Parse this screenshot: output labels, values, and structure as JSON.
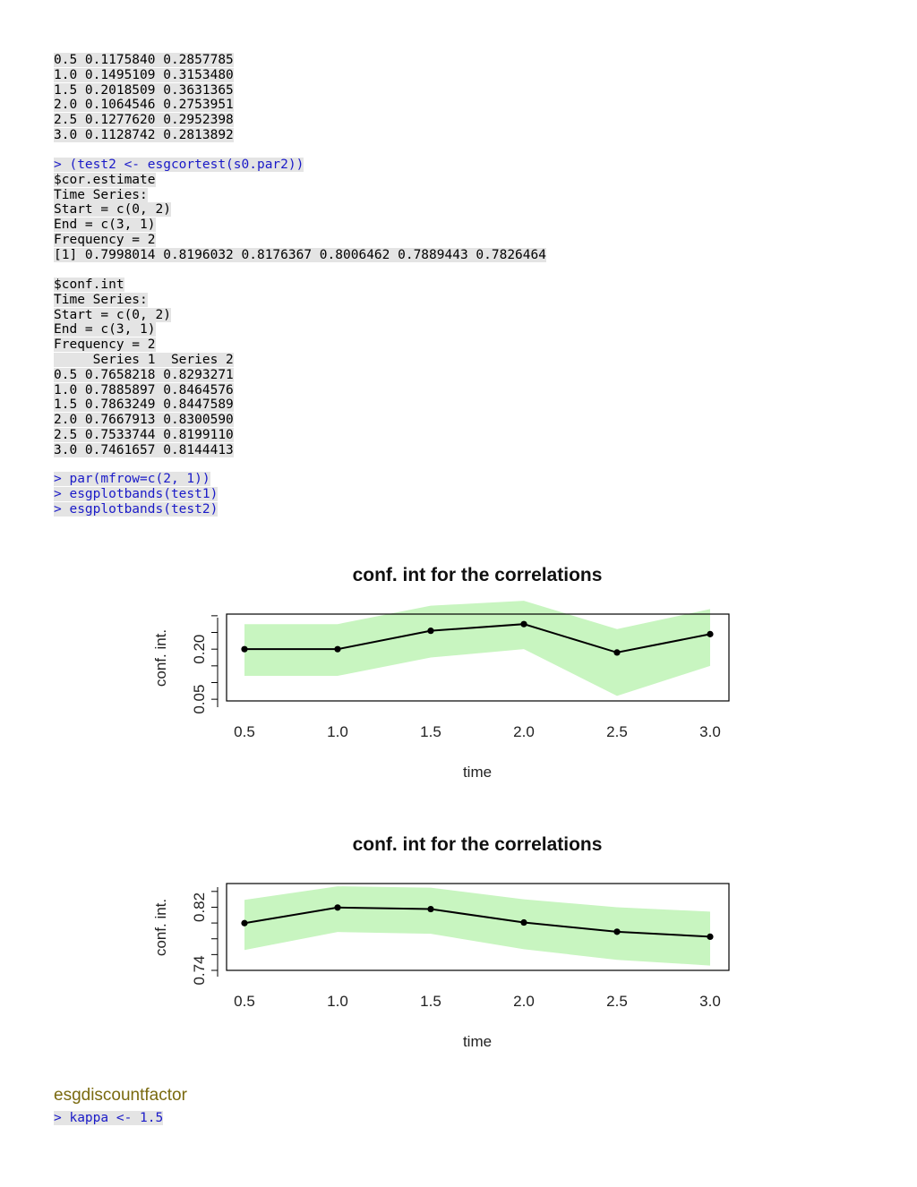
{
  "block1": [
    "0.5 0.1175840 0.2857785",
    "1.0 0.1495109 0.3153480",
    "1.5 0.2018509 0.3631365",
    "2.0 0.1064546 0.2753951",
    "2.5 0.1277620 0.2952398",
    "3.0 0.1128742 0.2813892"
  ],
  "block2": [
    {
      "t": "> (test2 <- esgcortest(s0.par2))",
      "cmd": true
    },
    {
      "t": "$cor.estimate",
      "cmd": false
    },
    {
      "t": "Time Series:",
      "cmd": false
    },
    {
      "t": "Start = c(0, 2)",
      "cmd": false
    },
    {
      "t": "End = c(3, 1)",
      "cmd": false
    },
    {
      "t": "Frequency = 2",
      "cmd": false
    },
    {
      "t": "[1] 0.7998014 0.8196032 0.8176367 0.8006462 0.7889443 0.7826464",
      "cmd": false
    }
  ],
  "block3": [
    "$conf.int",
    "Time Series:",
    "Start = c(0, 2)",
    "End = c(3, 1)",
    "Frequency = 2",
    "     Series 1  Series 2",
    "0.5 0.7658218 0.8293271",
    "1.0 0.7885897 0.8464576",
    "1.5 0.7863249 0.8447589",
    "2.0 0.7667913 0.8300590",
    "2.5 0.7533744 0.8199110",
    "3.0 0.7461657 0.8144413"
  ],
  "block4": [
    "> par(mfrow=c(2, 1))",
    "> esgplotbands(test1)",
    "> esgplotbands(test2)"
  ],
  "heading": "esgdiscountfactor",
  "block5": [
    "> kappa <- 1.5"
  ],
  "colors": {
    "band": "#c8f5c0",
    "line": "#000000",
    "command": "#1a1ac8",
    "heading": "#7a6a10",
    "code_bg": "#e4e4e4"
  },
  "chart_data": [
    {
      "type": "line",
      "title": "conf. int for the correlations",
      "xlabel": "time",
      "ylabel": "conf. int.",
      "x": [
        0.5,
        1.0,
        1.5,
        2.0,
        2.5,
        3.0
      ],
      "x_ticks": [
        "0.5",
        "1.0",
        "1.5",
        "2.0",
        "2.5",
        "3.0"
      ],
      "y_ticks": [
        "0.05",
        "0.20"
      ],
      "y_tick_values": [
        0.05,
        0.2
      ],
      "ylim": [
        0.045,
        0.305
      ],
      "y_minor_ticks": [
        0.1,
        0.15,
        0.25,
        0.3
      ],
      "estimate": [
        0.2,
        0.2,
        0.255,
        0.275,
        0.19,
        0.245
      ],
      "lower": [
        0.117584,
        0.1495109,
        0.2018509,
        0.1064546,
        0.127762,
        0.1128742
      ],
      "upper": [
        0.2857785,
        0.315348,
        0.3631365,
        0.2753951,
        0.2952398,
        0.2813892
      ],
      "band_lower": [
        0.12,
        0.12,
        0.175,
        0.2,
        0.06,
        0.15
      ],
      "band_upper": [
        0.275,
        0.275,
        0.33,
        0.345,
        0.26,
        0.32
      ]
    },
    {
      "type": "line",
      "title": "conf. int for the correlations",
      "xlabel": "time",
      "ylabel": "conf. int.",
      "x": [
        0.5,
        1.0,
        1.5,
        2.0,
        2.5,
        3.0
      ],
      "x_ticks": [
        "0.5",
        "1.0",
        "1.5",
        "2.0",
        "2.5",
        "3.0"
      ],
      "y_ticks": [
        "0.74",
        "0.82"
      ],
      "y_tick_values": [
        0.74,
        0.82
      ],
      "ylim": [
        0.74,
        0.85
      ],
      "y_minor_ticks": [
        0.76,
        0.78,
        0.8,
        0.84
      ],
      "estimate": [
        0.7998014,
        0.8196032,
        0.8176367,
        0.8006462,
        0.7889443,
        0.7826464
      ],
      "lower": [
        0.7658218,
        0.7885897,
        0.7863249,
        0.7667913,
        0.7533744,
        0.7461657
      ],
      "upper": [
        0.8293271,
        0.8464576,
        0.8447589,
        0.830059,
        0.819911,
        0.8144413
      ]
    }
  ]
}
